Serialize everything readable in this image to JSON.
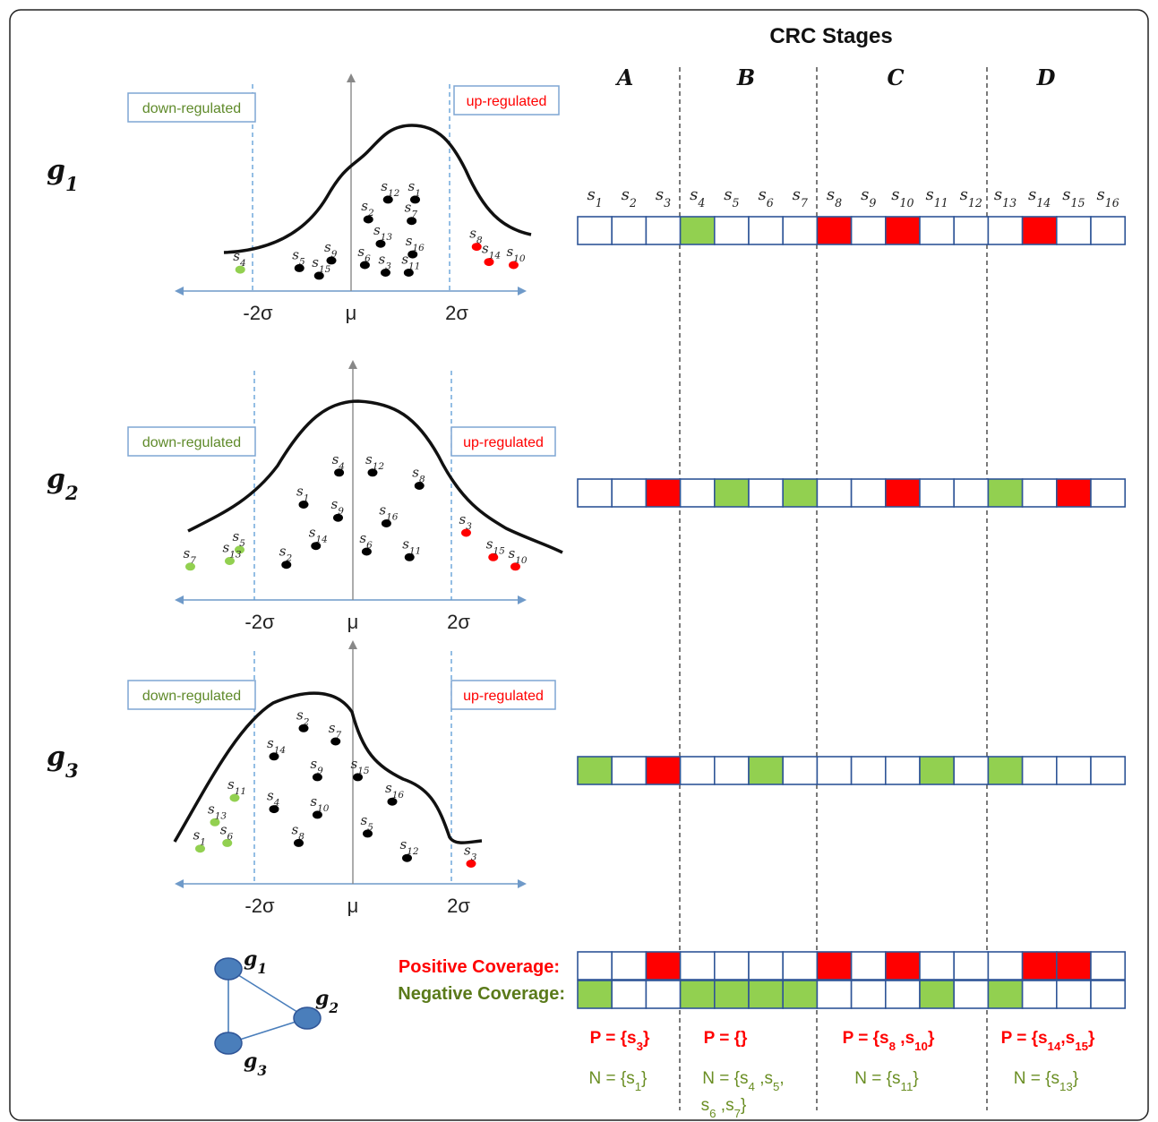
{
  "title": "CRC Stages",
  "stages": [
    "A",
    "B",
    "C",
    "D"
  ],
  "sample_labels": [
    "s1",
    "s2",
    "s3",
    "s4",
    "s5",
    "s6",
    "s7",
    "s8",
    "s9",
    "s10",
    "s11",
    "s12",
    "s13",
    "s14",
    "s15",
    "s16"
  ],
  "region_labels": {
    "down": "down-regulated",
    "up": "up-regulated"
  },
  "axis_labels": {
    "minus": "-2σ",
    "mu": "μ",
    "plus": "2σ"
  },
  "colors": {
    "up": "#ff0000",
    "down": "#92d050",
    "normal": "#000000",
    "cell_border": "#2f5597",
    "node": "#4a7ebb",
    "neg_text": "#5a7a1a"
  },
  "genes": [
    {
      "name": "g1",
      "row": [
        "",
        "",
        "",
        "down",
        "",
        "",
        "",
        "up",
        "",
        "up",
        "",
        "",
        "",
        "up",
        "",
        ""
      ],
      "points": [
        {
          "s": "s1",
          "c": "n",
          "x": 1.3,
          "h": 0.53
        },
        {
          "s": "s12",
          "c": "n",
          "x": 0.75,
          "h": 0.53
        },
        {
          "s": "s2",
          "c": "n",
          "x": 0.35,
          "h": 0.4
        },
        {
          "s": "s7",
          "c": "n",
          "x": 1.23,
          "h": 0.39
        },
        {
          "s": "s13",
          "c": "n",
          "x": 0.6,
          "h": 0.24
        },
        {
          "s": "s16",
          "c": "n",
          "x": 1.25,
          "h": 0.17
        },
        {
          "s": "s9",
          "c": "n",
          "x": -0.4,
          "h": 0.13
        },
        {
          "s": "s6",
          "c": "n",
          "x": 0.28,
          "h": 0.1
        },
        {
          "s": "s5",
          "c": "n",
          "x": -1.05,
          "h": 0.08
        },
        {
          "s": "s15",
          "c": "n",
          "x": -0.65,
          "h": 0.03
        },
        {
          "s": "s3",
          "c": "n",
          "x": 0.7,
          "h": 0.05
        },
        {
          "s": "s11",
          "c": "n",
          "x": 1.17,
          "h": 0.05
        },
        {
          "s": "s4",
          "c": "d",
          "x": -2.25,
          "h": 0.07
        },
        {
          "s": "s8",
          "c": "u",
          "x": 2.55,
          "h": 0.22
        },
        {
          "s": "s14",
          "c": "u",
          "x": 2.8,
          "h": 0.12
        },
        {
          "s": "s10",
          "c": "u",
          "x": 3.3,
          "h": 0.1
        }
      ]
    },
    {
      "name": "g2",
      "row": [
        "",
        "",
        "up",
        "",
        "down",
        "",
        "down",
        "",
        "",
        "up",
        "",
        "",
        "down",
        "",
        "up",
        ""
      ],
      "points": [
        {
          "s": "s4",
          "c": "n",
          "x": -0.28,
          "h": 0.62
        },
        {
          "s": "s12",
          "c": "n",
          "x": 0.4,
          "h": 0.62
        },
        {
          "s": "s8",
          "c": "n",
          "x": 1.35,
          "h": 0.55
        },
        {
          "s": "s1",
          "c": "n",
          "x": -1.0,
          "h": 0.45
        },
        {
          "s": "s9",
          "c": "n",
          "x": -0.3,
          "h": 0.38
        },
        {
          "s": "s16",
          "c": "n",
          "x": 0.68,
          "h": 0.35
        },
        {
          "s": "s14",
          "c": "n",
          "x": -0.75,
          "h": 0.23
        },
        {
          "s": "s6",
          "c": "n",
          "x": 0.28,
          "h": 0.2
        },
        {
          "s": "s11",
          "c": "n",
          "x": 1.15,
          "h": 0.17
        },
        {
          "s": "s2",
          "c": "n",
          "x": -1.35,
          "h": 0.13
        },
        {
          "s": "s5",
          "c": "d",
          "x": -2.3,
          "h": 0.21
        },
        {
          "s": "s13",
          "c": "d",
          "x": -2.5,
          "h": 0.15
        },
        {
          "s": "s7",
          "c": "d",
          "x": -3.3,
          "h": 0.12
        },
        {
          "s": "s3",
          "c": "u",
          "x": 2.3,
          "h": 0.3
        },
        {
          "s": "s15",
          "c": "u",
          "x": 2.85,
          "h": 0.17
        },
        {
          "s": "s10",
          "c": "u",
          "x": 3.3,
          "h": 0.12
        }
      ]
    },
    {
      "name": "g3",
      "row": [
        "down",
        "",
        "up",
        "",
        "",
        "down",
        "",
        "",
        "",
        "",
        "down",
        "",
        "down",
        "",
        "",
        ""
      ],
      "points": [
        {
          "s": "s2",
          "c": "n",
          "x": -1.0,
          "h": 0.77
        },
        {
          "s": "s7",
          "c": "n",
          "x": -0.35,
          "h": 0.7
        },
        {
          "s": "s14",
          "c": "n",
          "x": -1.6,
          "h": 0.62
        },
        {
          "s": "s9",
          "c": "n",
          "x": -0.72,
          "h": 0.51
        },
        {
          "s": "s15",
          "c": "n",
          "x": 0.1,
          "h": 0.51
        },
        {
          "s": "s4",
          "c": "n",
          "x": -1.6,
          "h": 0.34
        },
        {
          "s": "s10",
          "c": "n",
          "x": -0.72,
          "h": 0.31
        },
        {
          "s": "s16",
          "c": "n",
          "x": 0.8,
          "h": 0.38
        },
        {
          "s": "s5",
          "c": "n",
          "x": 0.3,
          "h": 0.21
        },
        {
          "s": "s8",
          "c": "n",
          "x": -1.1,
          "h": 0.16
        },
        {
          "s": "s12",
          "c": "n",
          "x": 1.1,
          "h": 0.08
        },
        {
          "s": "s11",
          "c": "d",
          "x": -2.4,
          "h": 0.4
        },
        {
          "s": "s13",
          "c": "d",
          "x": -2.8,
          "h": 0.27
        },
        {
          "s": "s6",
          "c": "d",
          "x": -2.55,
          "h": 0.16
        },
        {
          "s": "s1",
          "c": "d",
          "x": -3.1,
          "h": 0.13
        },
        {
          "s": "s3",
          "c": "u",
          "x": 2.4,
          "h": 0.05
        }
      ]
    }
  ],
  "coverage": {
    "positive_label": "Positive Coverage:",
    "negative_label": "Negative Coverage:",
    "positive_row": [
      "",
      "",
      "up",
      "",
      "",
      "",
      "",
      "up",
      "",
      "up",
      "",
      "",
      "",
      "up",
      "up",
      ""
    ],
    "negative_row": [
      "down",
      "",
      "",
      "down",
      "down",
      "down",
      "down",
      "",
      "",
      "",
      "down",
      "",
      "down",
      "",
      "",
      ""
    ]
  },
  "sets": [
    {
      "P": "P = {s3}",
      "N": "N = {s1}"
    },
    {
      "P": "P = {}",
      "N": "N = {s4 ,s5,",
      "N2": "s6 ,s7}"
    },
    {
      "P": "P = {s8 ,s10}",
      "N": "N = {s11}"
    },
    {
      "P": "P = {s14,s15}",
      "N": "N = {s13}"
    }
  ],
  "network": {
    "nodes": [
      "g1",
      "g2",
      "g3"
    ]
  }
}
